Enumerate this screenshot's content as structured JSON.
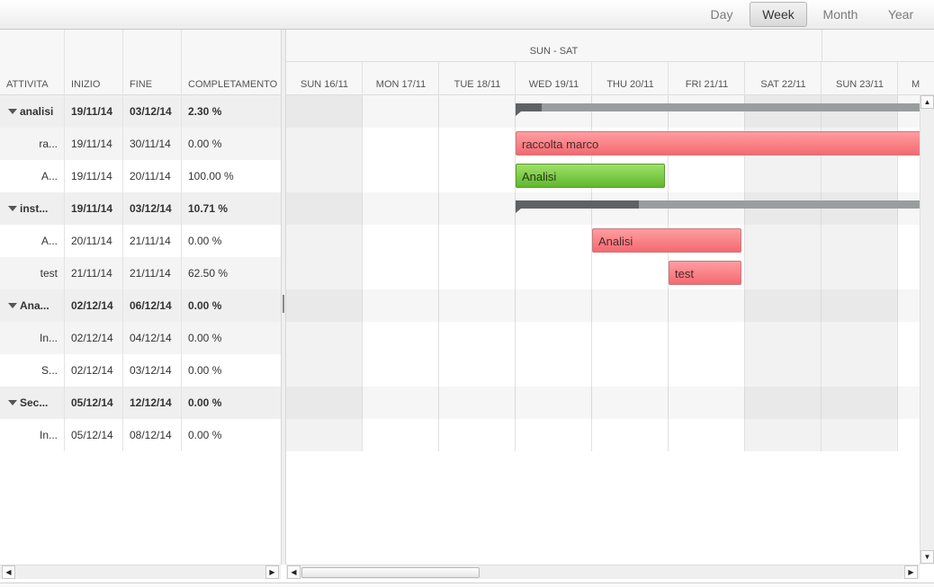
{
  "toolbar": {
    "views": [
      {
        "label": "Day",
        "active": false
      },
      {
        "label": "Week",
        "active": true
      },
      {
        "label": "Month",
        "active": false
      },
      {
        "label": "Year",
        "active": false
      }
    ]
  },
  "grid": {
    "columns": [
      "ATTIVITA",
      "INIZIO",
      "FINE",
      "COMPLETAMENTO"
    ],
    "rows": [
      {
        "name": "analisi",
        "start": "19/11/14",
        "end": "03/12/14",
        "complete": "2.30 %",
        "summary": true
      },
      {
        "name": "ra...",
        "start": "19/11/14",
        "end": "30/11/14",
        "complete": "0.00 %",
        "summary": false
      },
      {
        "name": "A...",
        "start": "19/11/14",
        "end": "20/11/14",
        "complete": "100.00 %",
        "summary": false
      },
      {
        "name": "inst...",
        "start": "19/11/14",
        "end": "03/12/14",
        "complete": "10.71 %",
        "summary": true
      },
      {
        "name": "A...",
        "start": "20/11/14",
        "end": "21/11/14",
        "complete": "0.00 %",
        "summary": false
      },
      {
        "name": "test",
        "start": "21/11/14",
        "end": "21/11/14",
        "complete": "62.50 %",
        "summary": false
      },
      {
        "name": "Ana...",
        "start": "02/12/14",
        "end": "06/12/14",
        "complete": "0.00 %",
        "summary": true
      },
      {
        "name": "In...",
        "start": "02/12/14",
        "end": "04/12/14",
        "complete": "0.00 %",
        "summary": false
      },
      {
        "name": "S...",
        "start": "02/12/14",
        "end": "03/12/14",
        "complete": "0.00 %",
        "summary": false
      },
      {
        "name": "Sec...",
        "start": "05/12/14",
        "end": "12/12/14",
        "complete": "0.00 %",
        "summary": true
      },
      {
        "name": "In...",
        "start": "05/12/14",
        "end": "08/12/14",
        "complete": "0.00 %",
        "summary": false
      }
    ]
  },
  "timeline": {
    "week_label": "SUN - SAT",
    "days": [
      "SUN 16/11",
      "MON 17/11",
      "TUE 18/11",
      "WED 19/11",
      "THU 20/11",
      "FRI 21/11",
      "SAT 22/11",
      "SUN 23/11",
      "M"
    ],
    "weekend_days": [
      0,
      6,
      7
    ],
    "summary_bars": [
      {
        "row": 0,
        "start_day": 3,
        "end_day": 15,
        "progress": 0.023
      },
      {
        "row": 3,
        "start_day": 3,
        "end_day": 15,
        "progress": 0.1071
      }
    ],
    "task_bars": [
      {
        "row": 1,
        "label": "raccolta marco",
        "start_day": 3,
        "end_day": 15,
        "color": "red"
      },
      {
        "row": 2,
        "label": "Analisi",
        "start_day": 3,
        "end_day": 5,
        "color": "green"
      },
      {
        "row": 4,
        "label": "Analisi",
        "start_day": 4,
        "end_day": 6,
        "color": "red"
      },
      {
        "row": 5,
        "label": "test",
        "start_day": 5,
        "end_day": 6,
        "color": "red"
      }
    ]
  },
  "icons": {
    "expand": "triangle-down-icon",
    "scroll_up": "arrow-up-icon",
    "scroll_down": "arrow-down-icon",
    "scroll_left": "arrow-left-icon",
    "scroll_right": "arrow-right-icon"
  }
}
